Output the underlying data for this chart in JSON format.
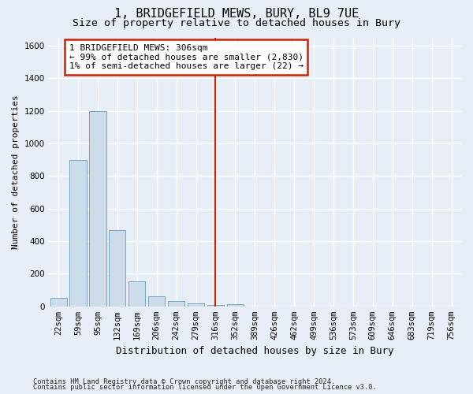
{
  "title": "1, BRIDGEFIELD MEWS, BURY, BL9 7UE",
  "subtitle": "Size of property relative to detached houses in Bury",
  "xlabel": "Distribution of detached houses by size in Bury",
  "ylabel": "Number of detached properties",
  "footnote1": "Contains HM Land Registry data © Crown copyright and database right 2024.",
  "footnote2": "Contains public sector information licensed under the Open Government Licence v3.0.",
  "bar_labels": [
    "22sqm",
    "59sqm",
    "95sqm",
    "132sqm",
    "169sqm",
    "206sqm",
    "242sqm",
    "279sqm",
    "316sqm",
    "352sqm",
    "389sqm",
    "426sqm",
    "462sqm",
    "499sqm",
    "536sqm",
    "573sqm",
    "609sqm",
    "646sqm",
    "683sqm",
    "719sqm",
    "756sqm"
  ],
  "bar_values": [
    50,
    900,
    1200,
    470,
    155,
    60,
    35,
    20,
    10,
    15,
    0,
    0,
    0,
    0,
    0,
    0,
    0,
    0,
    0,
    0,
    0
  ],
  "bar_color": "#ccdce8",
  "bar_edge_color": "#6699bb",
  "vline_index": 8,
  "vline_color": "#cc2200",
  "annotation_text": "1 BRIDGEFIELD MEWS: 306sqm\n← 99% of detached houses are smaller (2,830)\n1% of semi-detached houses are larger (22) →",
  "annotation_box_color": "#ffffff",
  "annotation_box_edge_color": "#cc2200",
  "ylim": [
    0,
    1650
  ],
  "yticks": [
    0,
    200,
    400,
    600,
    800,
    1000,
    1200,
    1400,
    1600
  ],
  "bg_color": "#e8eef6",
  "plot_bg_color": "#e8eef6",
  "grid_color": "#ffffff",
  "title_fontsize": 11,
  "subtitle_fontsize": 9.5,
  "axis_label_fontsize": 9,
  "tick_fontsize": 7.5,
  "ylabel_fontsize": 8
}
